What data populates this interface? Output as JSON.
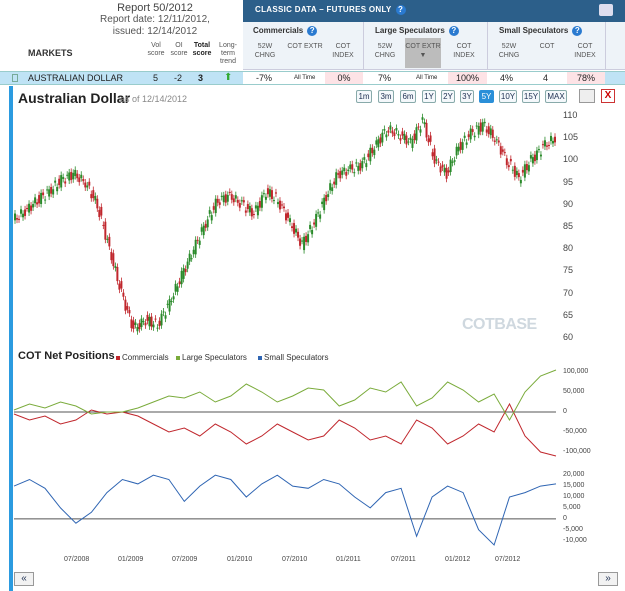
{
  "report": {
    "title": "Report 50/2012",
    "date": "Report date: 12/11/2012,",
    "issued": "issued: 12/14/2012"
  },
  "table_header": {
    "markets": "MARKETS",
    "vol_score": "Vol score",
    "oi_score": "OI score",
    "total_score": "Total score",
    "trend": "Long-term trend"
  },
  "classic": {
    "title": "CLASSIC DATA – FUTURES ONLY"
  },
  "groups": [
    {
      "name": "Commercials",
      "cols": [
        "52W CHNG",
        "COT EXTR",
        "COT INDEX"
      ]
    },
    {
      "name": "Large Speculators",
      "cols": [
        "52W CHNG",
        "COT EXTR",
        "COT INDEX"
      ]
    },
    {
      "name": "Small Speculators",
      "cols": [
        "52W CHNG",
        "COT",
        "COT INDEX"
      ]
    }
  ],
  "row": {
    "market": "AUSTRALIAN DOLLAR",
    "vol": "5",
    "oi": "-2",
    "total": "3",
    "comm_chng": "-7%",
    "comm_extr": "All Time",
    "comm_index": "0%",
    "large_chng": "7%",
    "large_extr": "All Time",
    "large_index": "100%",
    "small_chng": "4%",
    "small_cot": "4",
    "small_index": "78%"
  },
  "chart": {
    "title": "Australian Dollar",
    "as_of": "as of 12/14/2012",
    "ranges": [
      "1m",
      "3m",
      "6m",
      "1Y",
      "2Y",
      "3Y",
      "5Y",
      "10Y",
      "15Y",
      "MAX"
    ],
    "active_range": "5Y",
    "close": "X",
    "watermark": "COTBASE",
    "price_ticks": [
      "110",
      "105",
      "100",
      "95",
      "90",
      "85",
      "80",
      "75",
      "70",
      "65",
      "60"
    ],
    "cot_title": "COT Net Positions",
    "legend": [
      {
        "name": "Commercials",
        "color": "#c0272d"
      },
      {
        "name": "Large Speculators",
        "color": "#7aab3b"
      },
      {
        "name": "Small Speculators",
        "color": "#2f65b3"
      }
    ],
    "net_ticks": [
      "100,000",
      "50,000",
      "0",
      "-50,000",
      "-100,000"
    ],
    "small_ticks": [
      "20,000",
      "15,000",
      "10,000",
      "5,000",
      "0",
      "-5,000",
      "-10,000"
    ],
    "x_labels": [
      "07/2008",
      "01/2009",
      "07/2009",
      "01/2010",
      "07/2010",
      "01/2011",
      "07/2011",
      "01/2012",
      "07/2012"
    ],
    "nav_left": "«",
    "nav_right": "»"
  },
  "chart_data": [
    {
      "type": "line",
      "series": [
        {
          "name": "Australian Dollar",
          "values": [
            86.5,
            88.5,
            91,
            93,
            95.5,
            97,
            95,
            90,
            80,
            70,
            62,
            64,
            63,
            68,
            74,
            80,
            86,
            91,
            92,
            90,
            88,
            93,
            91,
            86,
            81,
            86,
            92,
            97,
            98,
            99,
            103,
            107,
            106,
            104,
            109,
            100,
            97,
            103,
            106,
            108,
            105,
            100,
            96,
            100,
            103,
            105
          ]
        }
      ],
      "ylim": [
        60,
        110
      ]
    },
    {
      "type": "line",
      "series": [
        {
          "name": "Commercials",
          "values": [
            -5000,
            -20000,
            -10000,
            -30000,
            -20000,
            5000,
            -5000,
            0,
            -10000,
            -30000,
            -50000,
            -40000,
            -60000,
            -30000,
            -50000,
            -80000,
            -60000,
            -30000,
            -50000,
            -70000,
            -60000,
            -20000,
            -40000,
            -70000,
            -60000,
            -80000,
            -20000,
            -40000,
            -80000,
            -60000,
            -30000,
            -50000,
            20000,
            -60000,
            -100000,
            -110000
          ]
        },
        {
          "name": "Large Speculators",
          "values": [
            5000,
            20000,
            10000,
            25000,
            15000,
            -5000,
            0,
            0,
            10000,
            25000,
            40000,
            35000,
            50000,
            25000,
            40000,
            70000,
            50000,
            25000,
            40000,
            60000,
            55000,
            15000,
            30000,
            60000,
            50000,
            75000,
            15000,
            35000,
            75000,
            55000,
            25000,
            45000,
            -20000,
            50000,
            90000,
            105000
          ]
        }
      ]
    },
    {
      "type": "line",
      "series": [
        {
          "name": "Small Speculators",
          "values": [
            15000,
            18000,
            14000,
            5000,
            -2000,
            3000,
            12000,
            18000,
            16000,
            20000,
            18000,
            8000,
            15000,
            20000,
            18000,
            10000,
            16000,
            20000,
            15000,
            14000,
            18000,
            16000,
            10000,
            5000,
            12000,
            14000,
            -8000,
            10000,
            15000,
            12000,
            -5000,
            -12000,
            10000,
            12000,
            15000,
            16000
          ]
        }
      ]
    }
  ]
}
